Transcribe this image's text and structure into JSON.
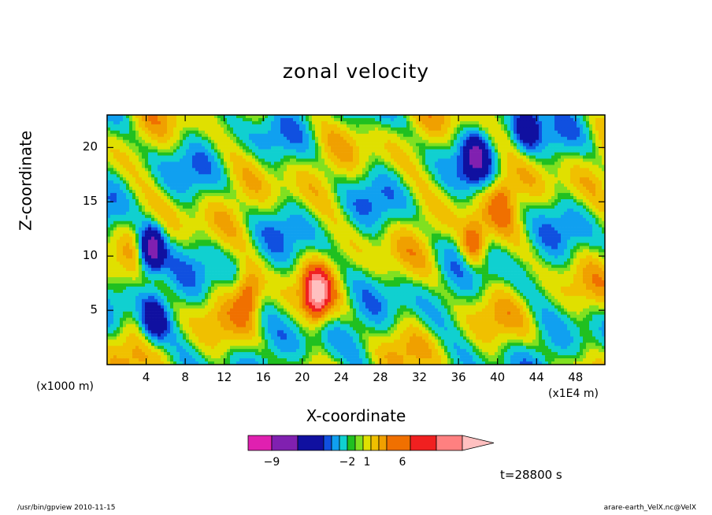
{
  "chart_data": {
    "type": "heatmap",
    "title": "zonal velocity",
    "xlabel": "X-coordinate",
    "ylabel": "Z-coordinate",
    "x_unit": "(x1E4 m)",
    "y_unit": "(x1000 m)",
    "xlim": [
      0,
      51
    ],
    "ylim": [
      0,
      23
    ],
    "x_ticks": [
      4,
      8,
      12,
      16,
      20,
      24,
      28,
      32,
      36,
      40,
      44,
      48
    ],
    "y_ticks": [
      5,
      10,
      15,
      20
    ],
    "colorbar": {
      "levels": [
        -9,
        -2,
        1,
        6
      ],
      "level_labels": [
        "−9",
        "−2",
        "1",
        "6"
      ],
      "colors": [
        "#e020b0",
        "#8020b0",
        "#1010a0",
        "#1050e0",
        "#10a0f0",
        "#10d0d0",
        "#20c020",
        "#80e020",
        "#e0e000",
        "#f0c000",
        "#f0a000",
        "#f07000",
        "#f02020",
        "#ff8080",
        "#ffc0c0"
      ]
    },
    "features": [
      {
        "x": 4.5,
        "z": 10.5,
        "sign": "negative",
        "strength": "strong"
      },
      {
        "x": 4.8,
        "z": 4.0,
        "sign": "negative",
        "strength": "moderate"
      },
      {
        "x": 21.5,
        "z": 6.5,
        "sign": "positive",
        "strength": "strong"
      },
      {
        "x": 37.5,
        "z": 11.0,
        "sign": "positive",
        "strength": "moderate"
      },
      {
        "x": 40.5,
        "z": 15.5,
        "sign": "positive",
        "strength": "weak"
      },
      {
        "x": 14.5,
        "z": 6.5,
        "sign": "positive",
        "strength": "moderate"
      },
      {
        "x": 37.8,
        "z": 19.0,
        "sign": "negative",
        "strength": "moderate"
      },
      {
        "x": 43.0,
        "z": 22.0,
        "sign": "negative",
        "strength": "moderate"
      }
    ]
  },
  "annotations": {
    "time": "t=28800 s",
    "footer_left": "/usr/bin/gpview 2010-11-15",
    "footer_right": "arare-earth_VelX.nc@VelX"
  }
}
